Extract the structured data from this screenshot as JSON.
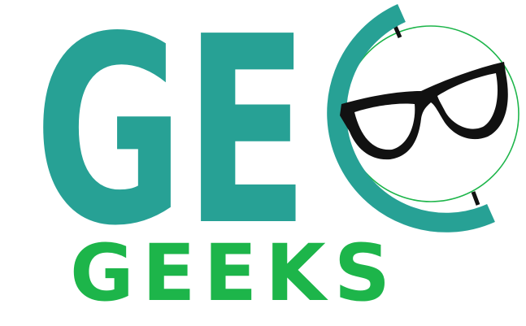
{
  "logo": {
    "wordmark": "GE",
    "tagline": "GEEKS"
  }
}
